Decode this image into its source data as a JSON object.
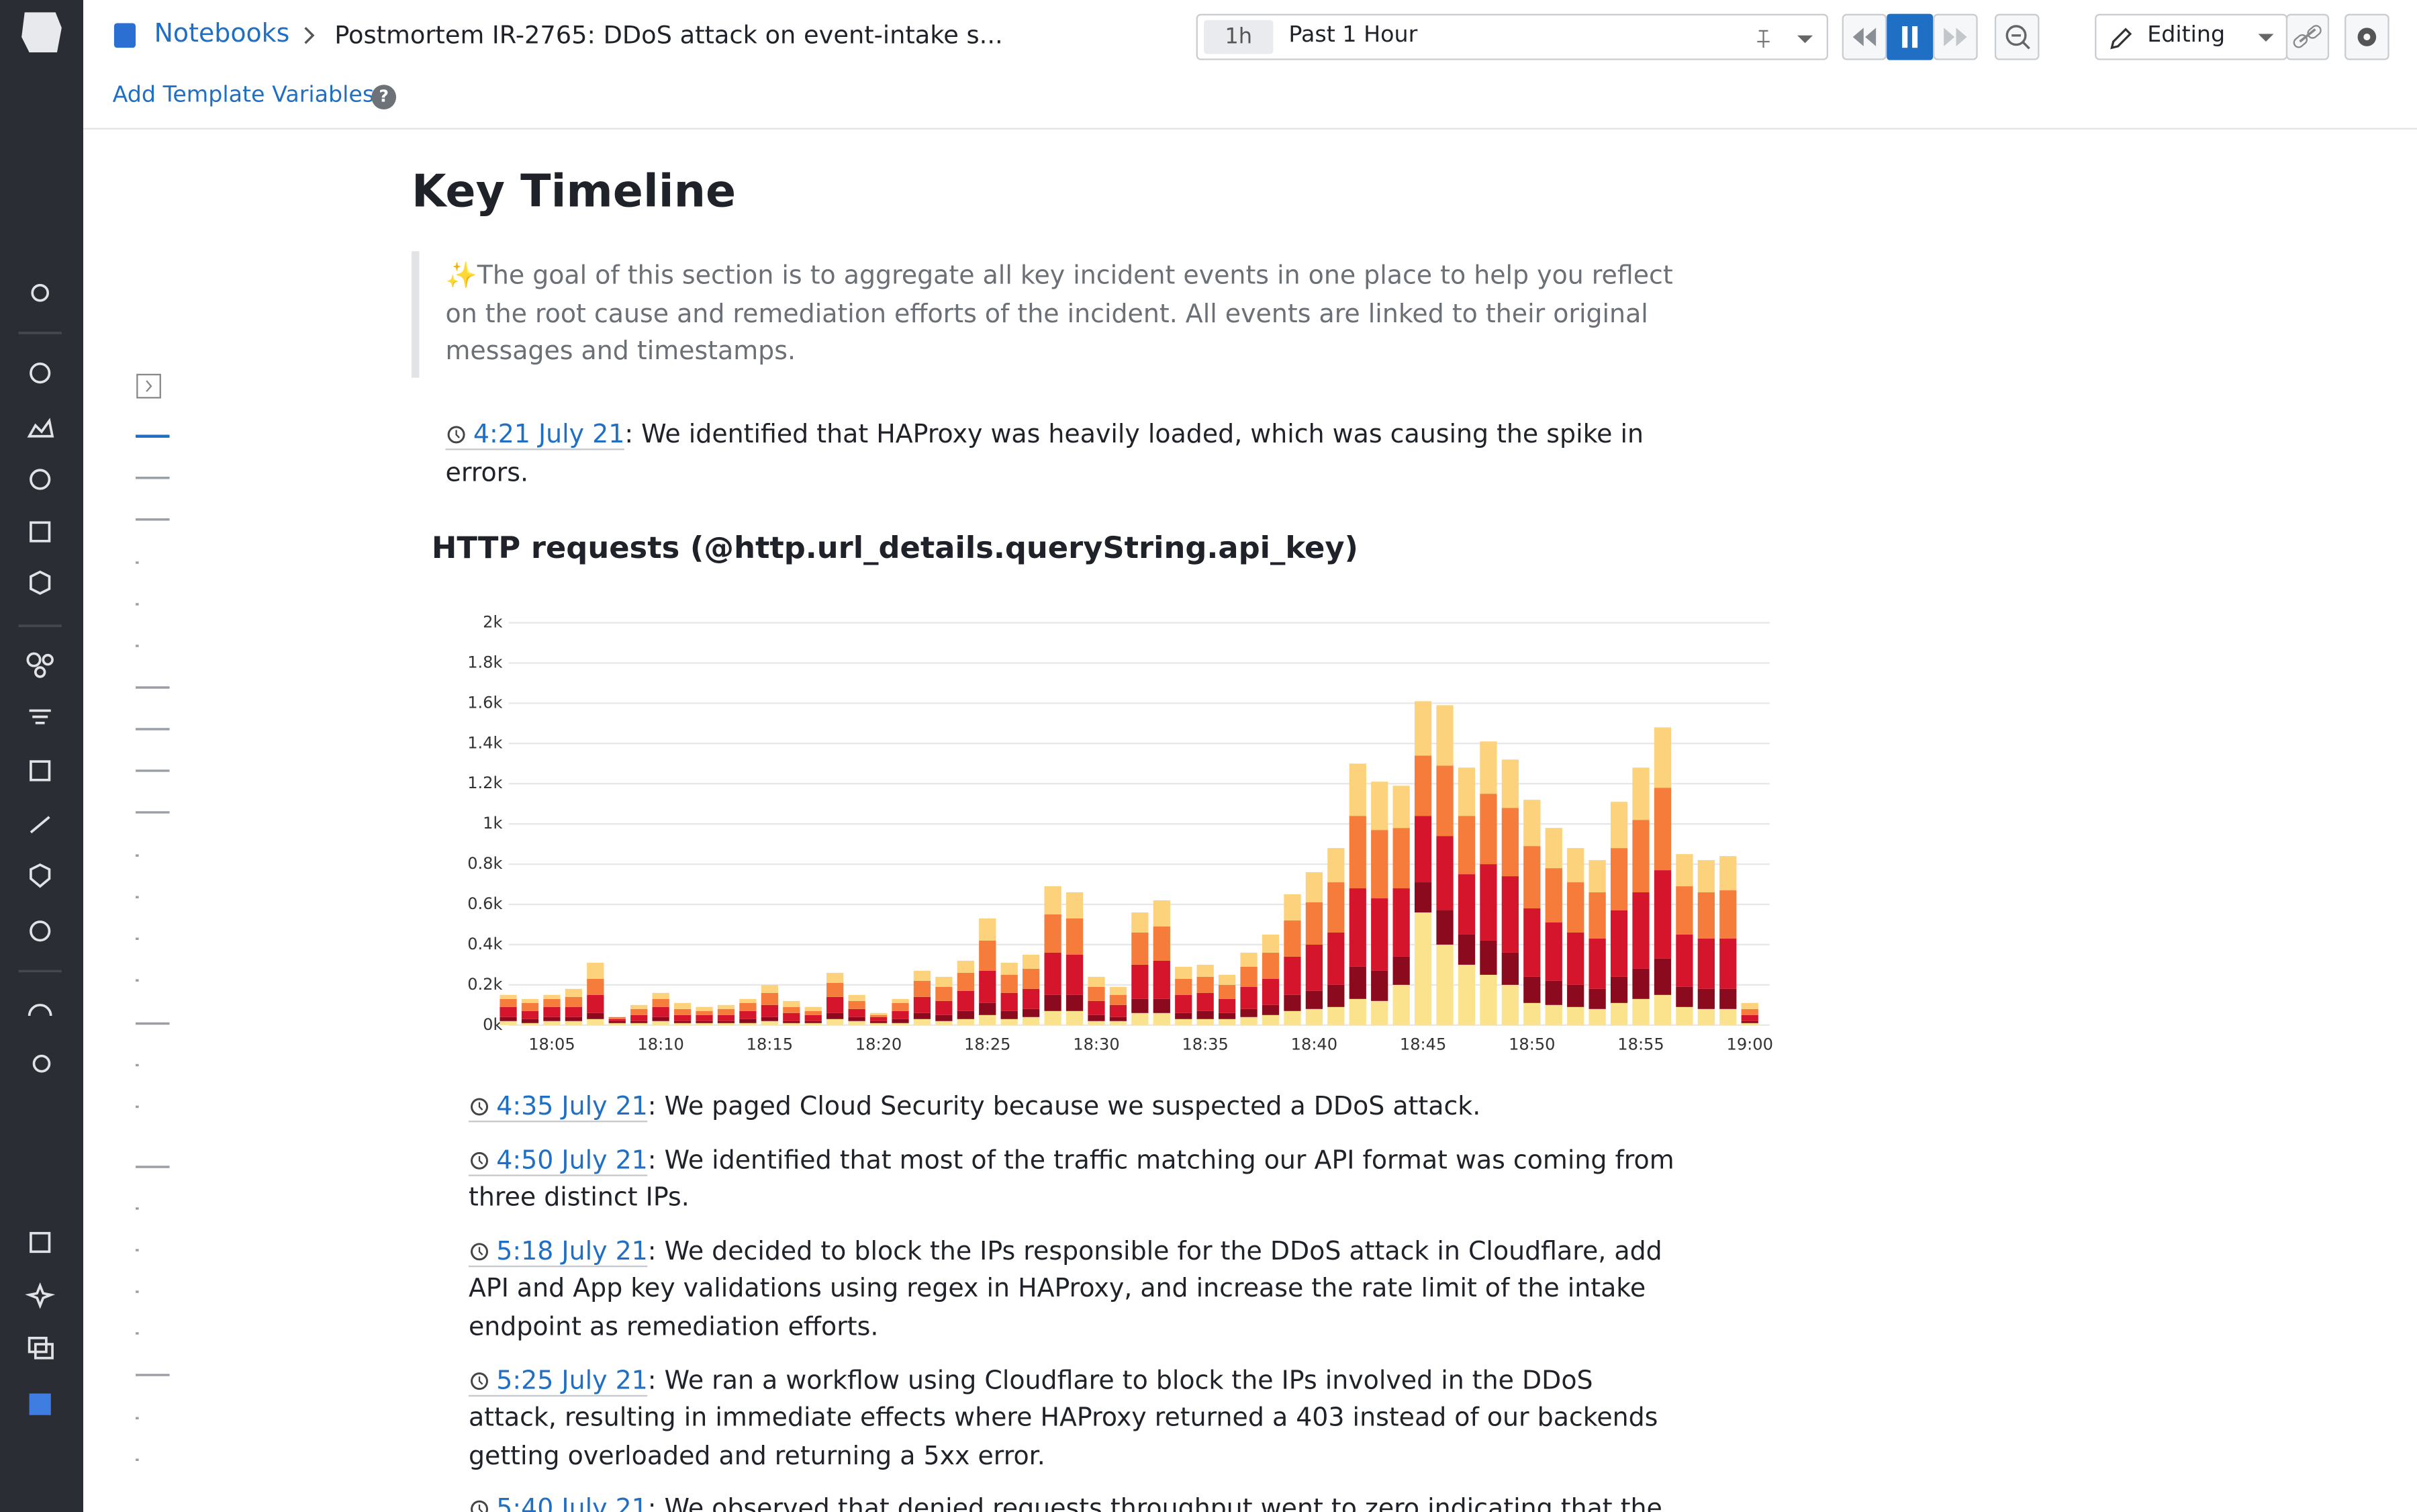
{
  "header": {
    "breadcrumb": "Notebooks",
    "title": "Postmortem IR-2765: DDoS attack on event-intake s...",
    "time_badge": "1h",
    "time_range": "Past 1 Hour",
    "mode": "Editing"
  },
  "toolbar": {
    "template_link": "Add Template Variables",
    "help_icon": "?"
  },
  "section": {
    "heading": "Key Timeline",
    "quote": "✨The goal of this section is to aggregate all key incident events in one place to help you reflect on the root cause and remediation efforts of the incident. All events are linked to their original messages and timestamps.",
    "entries_before": [
      {
        "time": "4:21 July 21",
        "text": ": We identified that HAProxy was heavily loaded, which was causing the spike in errors."
      }
    ],
    "entries_after": [
      {
        "time": "4:35 July 21",
        "text": ": We paged Cloud Security because we suspected a DDoS attack."
      },
      {
        "time": "4:50 July 21",
        "text": ": We identified that most of the traffic matching our API format was coming from three distinct IPs."
      },
      {
        "time": "5:18 July 21",
        "text": ": We decided to block the IPs responsible for the DDoS attack in Cloudflare, add API and App key validations using regex in HAProxy, and increase the rate limit of the intake endpoint as remediation efforts."
      },
      {
        "time": "5:25 July 21",
        "text": ": We ran a workflow using Cloudflare to block the IPs involved in the DDoS attack, resulting in immediate effects where HAProxy returned a 403 instead of our backends getting overloaded and returning a 5xx error."
      },
      {
        "time": "5:40 July 21",
        "text": ": We observed that denied requests throughput went to zero indicating that the attack"
      }
    ]
  },
  "chart_data": {
    "type": "bar",
    "stacked": true,
    "title": "HTTP requests (@http.url_details.queryString.api_key)",
    "grid": true,
    "categories": [
      null,
      null,
      "18:05",
      null,
      null,
      null,
      null,
      "18:10",
      null,
      null,
      null,
      null,
      "18:15",
      null,
      null,
      null,
      null,
      "18:20",
      null,
      null,
      null,
      null,
      "18:25",
      null,
      null,
      null,
      null,
      "18:30",
      null,
      null,
      null,
      null,
      "18:35",
      null,
      null,
      null,
      null,
      "18:40",
      null,
      null,
      null,
      null,
      "18:45",
      null,
      null,
      null,
      null,
      "18:50",
      null,
      null,
      null,
      null,
      "18:55",
      null,
      null,
      null,
      null,
      "19:00"
    ],
    "ylim": [
      0,
      2000
    ],
    "yticks": [
      {
        "value": 0,
        "label": "0k"
      },
      {
        "value": 200,
        "label": "0.2k"
      },
      {
        "value": 400,
        "label": "0.4k"
      },
      {
        "value": 600,
        "label": "0.6k"
      },
      {
        "value": 800,
        "label": "0.8k"
      },
      {
        "value": 1000,
        "label": "1k"
      },
      {
        "value": 1200,
        "label": "1.2k"
      },
      {
        "value": 1400,
        "label": "1.4k"
      },
      {
        "value": 1600,
        "label": "1.6k"
      },
      {
        "value": 1800,
        "label": "1.8k"
      },
      {
        "value": 2000,
        "label": "2k"
      }
    ],
    "series": [
      {
        "color": "#fbe28c",
        "values": [
          20,
          10,
          20,
          20,
          30,
          10,
          10,
          20,
          10,
          10,
          10,
          10,
          20,
          10,
          10,
          30,
          20,
          10,
          10,
          30,
          20,
          30,
          50,
          30,
          40,
          70,
          70,
          20,
          20,
          60,
          60,
          30,
          30,
          30,
          40,
          50,
          70,
          80,
          90,
          130,
          120,
          200,
          560,
          400,
          300,
          250,
          200,
          110,
          100,
          90,
          80,
          110,
          130,
          150,
          90,
          80,
          80,
          10
        ]
      },
      {
        "color": "#8c0a1d",
        "values": [
          20,
          20,
          20,
          20,
          30,
          10,
          10,
          20,
          10,
          10,
          10,
          20,
          20,
          10,
          10,
          30,
          20,
          10,
          20,
          30,
          30,
          40,
          60,
          40,
          40,
          80,
          80,
          30,
          20,
          70,
          70,
          30,
          40,
          30,
          40,
          50,
          80,
          90,
          110,
          160,
          150,
          140,
          150,
          170,
          150,
          170,
          160,
          130,
          120,
          110,
          100,
          130,
          150,
          180,
          100,
          100,
          100,
          10
        ]
      },
      {
        "color": "#d5152b",
        "values": [
          50,
          40,
          50,
          50,
          90,
          10,
          30,
          50,
          30,
          30,
          30,
          40,
          60,
          40,
          30,
          80,
          40,
          20,
          40,
          80,
          70,
          100,
          160,
          90,
          100,
          210,
          200,
          70,
          60,
          170,
          190,
          90,
          90,
          70,
          110,
          130,
          190,
          230,
          260,
          390,
          360,
          340,
          330,
          370,
          300,
          380,
          380,
          340,
          290,
          260,
          250,
          330,
          380,
          440,
          260,
          250,
          250,
          30
        ]
      },
      {
        "color": "#f57c3a",
        "values": [
          40,
          40,
          40,
          50,
          80,
          10,
          30,
          40,
          30,
          20,
          30,
          40,
          60,
          30,
          20,
          70,
          40,
          10,
          40,
          80,
          70,
          90,
          150,
          90,
          100,
          190,
          180,
          70,
          50,
          160,
          170,
          80,
          80,
          70,
          100,
          130,
          180,
          210,
          250,
          360,
          340,
          300,
          300,
          350,
          290,
          350,
          340,
          310,
          270,
          250,
          230,
          310,
          360,
          410,
          240,
          230,
          240,
          30
        ]
      },
      {
        "color": "#fcd27c",
        "values": [
          20,
          20,
          20,
          40,
          80,
          0,
          20,
          30,
          30,
          20,
          20,
          20,
          40,
          30,
          20,
          50,
          30,
          10,
          20,
          50,
          50,
          60,
          110,
          60,
          70,
          140,
          130,
          50,
          40,
          100,
          130,
          60,
          60,
          50,
          70,
          90,
          130,
          150,
          170,
          260,
          240,
          210,
          270,
          300,
          240,
          260,
          240,
          230,
          200,
          170,
          160,
          230,
          260,
          300,
          160,
          160,
          170,
          30
        ]
      }
    ]
  }
}
